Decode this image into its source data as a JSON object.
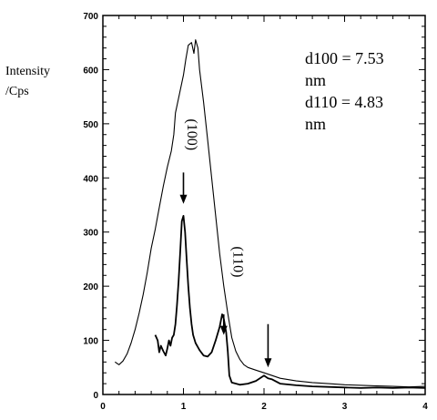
{
  "chart_data": {
    "type": "line",
    "ylabel_lines": [
      "Intensity",
      "/Cps"
    ],
    "xlim": [
      0,
      4
    ],
    "ylim": [
      0,
      700
    ],
    "x_ticks": [
      0,
      1,
      2,
      3,
      4
    ],
    "y_ticks": [
      0,
      100,
      200,
      300,
      400,
      500,
      600,
      700
    ],
    "annotation_lines": [
      "d100 = 7.53",
      "nm",
      "d110 = 4.83",
      "nm"
    ],
    "peak_labels": [
      {
        "text": "(100)",
        "x": 1.05,
        "y": 480
      },
      {
        "text": "(110)",
        "x": 1.62,
        "y": 245
      }
    ],
    "arrows": [
      {
        "x": 1.0,
        "y_from": 410,
        "y_to": 352
      },
      {
        "x": 1.5,
        "y_from": 148,
        "y_to": 110
      },
      {
        "x": 2.05,
        "y_from": 130,
        "y_to": 50
      }
    ],
    "series": [
      {
        "points": [
          [
            0.15,
            60
          ],
          [
            0.2,
            55
          ],
          [
            0.25,
            62
          ],
          [
            0.3,
            75
          ],
          [
            0.35,
            95
          ],
          [
            0.4,
            120
          ],
          [
            0.45,
            150
          ],
          [
            0.5,
            185
          ],
          [
            0.55,
            225
          ],
          [
            0.6,
            270
          ],
          [
            0.65,
            305
          ],
          [
            0.7,
            345
          ],
          [
            0.75,
            385
          ],
          [
            0.8,
            420
          ],
          [
            0.85,
            450
          ],
          [
            0.88,
            480
          ],
          [
            0.9,
            520
          ],
          [
            0.95,
            555
          ],
          [
            1.0,
            590
          ],
          [
            1.03,
            620
          ],
          [
            1.06,
            645
          ],
          [
            1.1,
            650
          ],
          [
            1.13,
            630
          ],
          [
            1.15,
            655
          ],
          [
            1.18,
            640
          ],
          [
            1.2,
            600
          ],
          [
            1.25,
            540
          ],
          [
            1.3,
            470
          ],
          [
            1.35,
            400
          ],
          [
            1.4,
            330
          ],
          [
            1.45,
            260
          ],
          [
            1.5,
            200
          ],
          [
            1.55,
            150
          ],
          [
            1.6,
            105
          ],
          [
            1.65,
            80
          ],
          [
            1.7,
            65
          ],
          [
            1.75,
            55
          ],
          [
            1.8,
            50
          ],
          [
            1.9,
            45
          ],
          [
            2.0,
            40
          ],
          [
            2.1,
            35
          ],
          [
            2.2,
            30
          ],
          [
            2.4,
            25
          ],
          [
            2.6,
            22
          ],
          [
            2.8,
            20
          ],
          [
            3.0,
            18
          ],
          [
            3.2,
            17
          ],
          [
            3.4,
            16
          ],
          [
            3.6,
            15
          ],
          [
            3.8,
            14
          ],
          [
            4.0,
            15
          ]
        ]
      },
      {
        "points": [
          [
            0.65,
            110
          ],
          [
            0.68,
            100
          ],
          [
            0.7,
            78
          ],
          [
            0.72,
            90
          ],
          [
            0.75,
            80
          ],
          [
            0.78,
            72
          ],
          [
            0.8,
            85
          ],
          [
            0.82,
            100
          ],
          [
            0.84,
            90
          ],
          [
            0.86,
            105
          ],
          [
            0.88,
            110
          ],
          [
            0.9,
            130
          ],
          [
            0.92,
            165
          ],
          [
            0.94,
            210
          ],
          [
            0.96,
            265
          ],
          [
            0.98,
            320
          ],
          [
            1.0,
            330
          ],
          [
            1.02,
            300
          ],
          [
            1.04,
            250
          ],
          [
            1.06,
            200
          ],
          [
            1.08,
            160
          ],
          [
            1.1,
            130
          ],
          [
            1.12,
            110
          ],
          [
            1.15,
            95
          ],
          [
            1.2,
            82
          ],
          [
            1.25,
            72
          ],
          [
            1.3,
            70
          ],
          [
            1.35,
            78
          ],
          [
            1.4,
            100
          ],
          [
            1.45,
            125
          ],
          [
            1.48,
            148
          ],
          [
            1.5,
            140
          ],
          [
            1.53,
            115
          ],
          [
            1.55,
            80
          ],
          [
            1.57,
            35
          ],
          [
            1.6,
            22
          ],
          [
            1.7,
            18
          ],
          [
            1.8,
            20
          ],
          [
            1.9,
            25
          ],
          [
            2.0,
            35
          ],
          [
            2.05,
            30
          ],
          [
            2.1,
            28
          ],
          [
            2.2,
            20
          ],
          [
            2.4,
            17
          ],
          [
            2.6,
            15
          ],
          [
            2.8,
            14
          ],
          [
            3.0,
            13
          ],
          [
            3.2,
            12
          ],
          [
            3.4,
            13
          ],
          [
            3.6,
            12
          ],
          [
            3.8,
            13
          ],
          [
            4.0,
            12
          ]
        ]
      }
    ]
  }
}
